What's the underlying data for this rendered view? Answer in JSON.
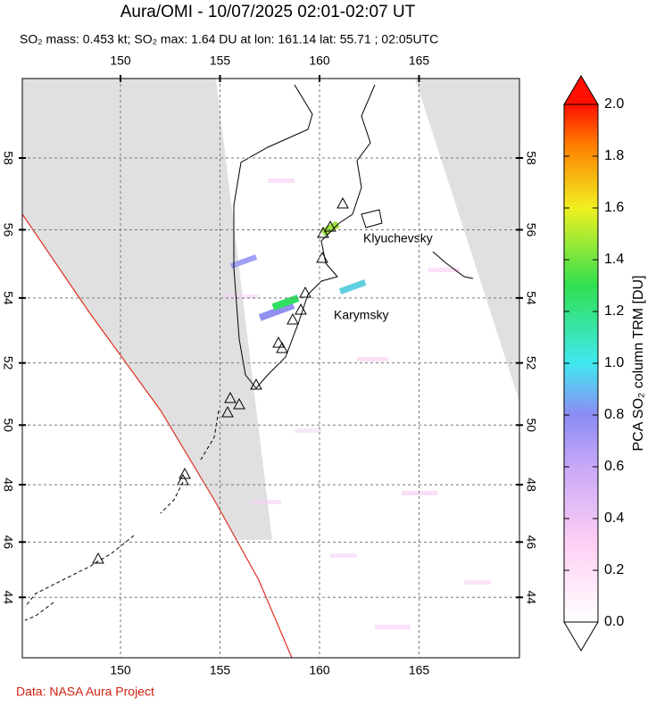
{
  "header": {
    "title": "Aura/OMI - 10/07/2025 02:01-02:07 UT",
    "subtitle": "SO₂ mass: 0.453 kt; SO₂ max: 1.64 DU at lon: 161.14 lat: 55.71 ; 02:05UTC"
  },
  "map": {
    "lon_ticks": [
      150,
      155,
      160,
      165
    ],
    "lat_ticks": [
      44,
      46,
      48,
      50,
      52,
      54,
      56,
      58
    ],
    "labels": [
      "Klyuchevsky",
      "Karymsky"
    ]
  },
  "colorbar": {
    "title": "PCA SO₂ column TRM [DU]",
    "ticks": [
      {
        "value": 0,
        "label": "0.0"
      },
      {
        "value": 0.2,
        "label": "0.2"
      },
      {
        "value": 0.4,
        "label": "0.4"
      },
      {
        "value": 0.6,
        "label": "0.6"
      },
      {
        "value": 0.8,
        "label": "0.8"
      },
      {
        "value": 1.0,
        "label": "1.0"
      },
      {
        "value": 1.2,
        "label": "1.2"
      },
      {
        "value": 1.4,
        "label": "1.4"
      },
      {
        "value": 1.6,
        "label": "1.6"
      },
      {
        "value": 1.8,
        "label": "1.8"
      },
      {
        "value": 2.0,
        "label": "2.0"
      }
    ]
  },
  "footer": {
    "credit": "Data: NASA Aura Project"
  }
}
